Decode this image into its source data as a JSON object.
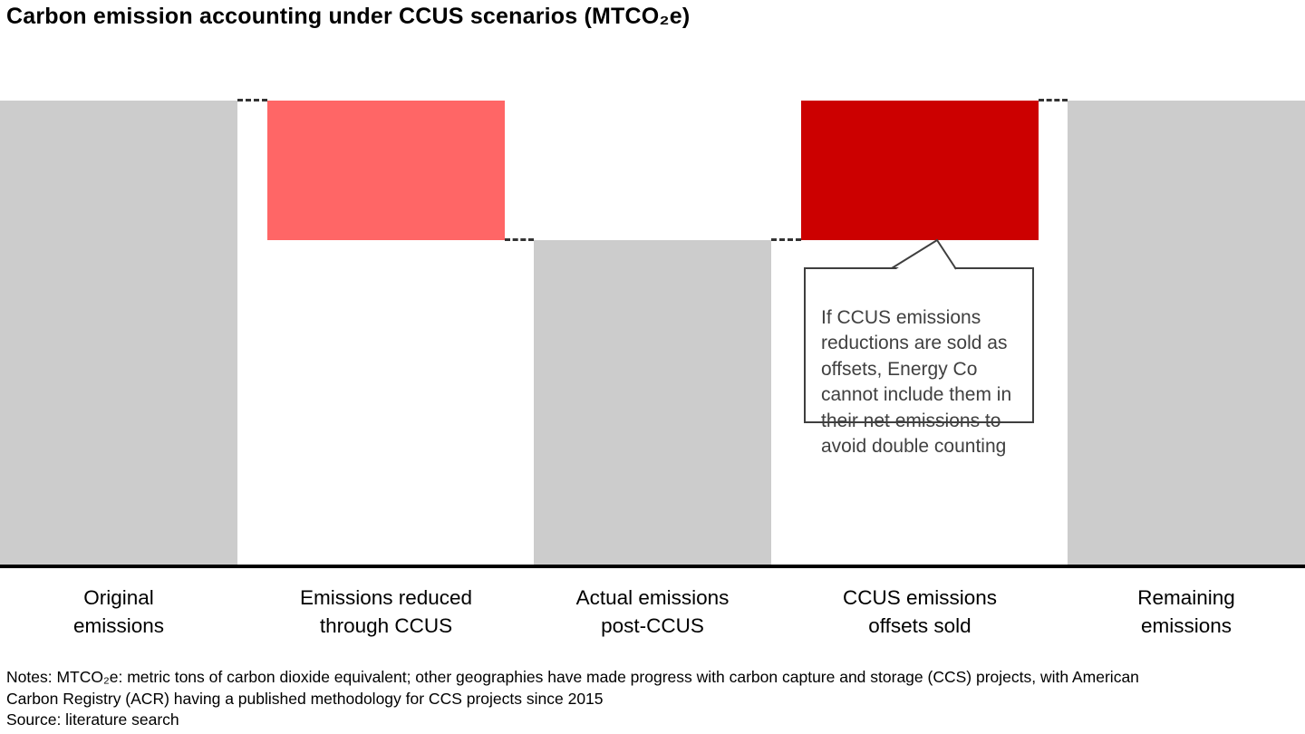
{
  "title": "Carbon emission accounting under CCUS scenarios (MTCO₂e)",
  "chart_data": {
    "type": "bar",
    "variant": "waterfall",
    "title": "Carbon emission accounting under CCUS scenarios (MTCO₂e)",
    "categories": [
      "Original emissions",
      "Emissions reduced through CCUS",
      "Actual emissions post-CCUS",
      "CCUS emissions offsets sold",
      "Remaining emissions"
    ],
    "axis_labels_wrapped": [
      "Original\nemissions",
      "Emissions reduced\nthrough CCUS",
      "Actual emissions\npost-CCUS",
      "CCUS emissions\noffsets sold",
      "Remaining\nemissions"
    ],
    "series": [
      {
        "name": "emissions-segment",
        "base": [
          0,
          70,
          0,
          70,
          0
        ],
        "top": [
          100,
          100,
          70,
          100,
          100
        ]
      }
    ],
    "values_note": "No numeric axis is shown; segment heights are relative estimates where original emissions = 100",
    "connector_levels": [
      100,
      70,
      70,
      100
    ],
    "bar_colors": [
      "gray",
      "light_red",
      "gray",
      "dark_red",
      "gray"
    ],
    "palette": {
      "gray": "#CCCCCC",
      "light_red": "#FF6666",
      "dark_red": "#CC0000"
    },
    "axis_color": "#000000",
    "xlabel": "",
    "ylabel": "",
    "ylim": [
      0,
      100
    ],
    "grid": false,
    "legend": false
  },
  "callout": {
    "text": "If CCUS emissions\nreductions are sold as\noffsets, Energy Co\ncannot include them in\ntheir net emissions to\navoid double counting"
  },
  "notes": {
    "text": "Notes: MTCO₂e: metric tons of carbon dioxide equivalent; other geographies have made progress with carbon capture and storage (CCS) projects, with American\nCarbon Registry (ACR) having a published methodology for CCS projects since 2015",
    "source": "Source: literature search"
  }
}
